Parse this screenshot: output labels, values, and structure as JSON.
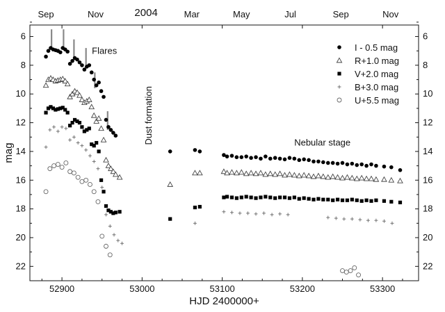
{
  "chart_data": {
    "type": "scatter",
    "title": "2004",
    "xlabel": "HJD 2400000+",
    "ylabel": "mag",
    "xlim": [
      52860,
      53345
    ],
    "ylim": [
      23,
      5.2
    ],
    "y_inverted": true,
    "grid": false,
    "legend_position": "top-right",
    "x_ticks": [
      "52900",
      "53000",
      "53100",
      "53200",
      "53300"
    ],
    "y_ticks": [
      "6",
      "8",
      "10",
      "12",
      "14",
      "16",
      "18",
      "20",
      "22"
    ],
    "top_month_ticks": [
      {
        "label": "Sep",
        "x": 52880
      },
      {
        "label": "Nov",
        "x": 52942
      },
      {
        "label": "Mar",
        "x": 53062
      },
      {
        "label": "May",
        "x": 53124
      },
      {
        "label": "Jul",
        "x": 53185
      },
      {
        "label": "Sep",
        "x": 53248
      },
      {
        "label": "Nov",
        "x": 53310
      }
    ],
    "year_label": {
      "text": "2004",
      "x": 53005
    },
    "annotations": [
      {
        "text": "Flares",
        "x": 52953,
        "y": 7.2
      },
      {
        "text": "Dust formation",
        "x": 53012,
        "y": 11.5,
        "rotation": -90
      },
      {
        "text": "Nebular stage",
        "x": 53225,
        "y": 13.6
      }
    ],
    "flare_markers": [
      {
        "x": 52887,
        "y0": 5.5,
        "y1": 6.8
      },
      {
        "x": 52902,
        "y0": 5.5,
        "y1": 6.8
      },
      {
        "x": 52915,
        "y0": 6.2,
        "y1": 7.5
      },
      {
        "x": 52930,
        "y0": 6.8,
        "y1": 8.2
      },
      {
        "x": 52941,
        "y0": 8.5,
        "y1": 9.6
      },
      {
        "x": 52957,
        "y0": 11.2,
        "y1": 12.5
      }
    ],
    "series": [
      {
        "name": "I - 0.5 mag",
        "marker": "filled-circle",
        "x": [
          52880,
          52883,
          52886,
          52889,
          52892,
          52895,
          52898,
          52901,
          52904,
          52907,
          52910,
          52913,
          52916,
          52919,
          52922,
          52925,
          52928,
          52931,
          52934,
          52937,
          52940,
          52943,
          52946,
          52949,
          52952,
          52955,
          52958,
          52961,
          52964,
          52967,
          53035,
          53066,
          53072,
          53102,
          53106,
          53112,
          53118,
          53124,
          53130,
          53136,
          53142,
          53148,
          53154,
          53160,
          53166,
          53172,
          53178,
          53184,
          53190,
          53196,
          53202,
          53208,
          53214,
          53220,
          53226,
          53232,
          53238,
          53244,
          53250,
          53256,
          53262,
          53268,
          53274,
          53280,
          53286,
          53292,
          53302,
          53311,
          53322
        ],
        "y": [
          7.4,
          7.0,
          6.8,
          6.9,
          6.95,
          7.0,
          7.1,
          6.8,
          6.9,
          7.05,
          7.9,
          7.7,
          7.5,
          7.6,
          7.8,
          8.0,
          8.3,
          8.1,
          8.0,
          8.5,
          9.0,
          9.4,
          9.2,
          9.8,
          10.2,
          11.8,
          12.3,
          12.5,
          12.7,
          12.9,
          14.0,
          13.9,
          14.0,
          14.25,
          14.35,
          14.3,
          14.4,
          14.4,
          14.35,
          14.45,
          14.4,
          14.5,
          14.35,
          14.5,
          14.45,
          14.5,
          14.55,
          14.45,
          14.5,
          14.6,
          14.55,
          14.6,
          14.7,
          14.7,
          14.75,
          14.8,
          14.8,
          14.85,
          14.8,
          14.9,
          14.85,
          14.95,
          14.9,
          15.0,
          14.9,
          15.0,
          15.05,
          15.1,
          15.3
        ]
      },
      {
        "name": "R+1.0 mag",
        "marker": "open-triangle",
        "x": [
          52880,
          52883,
          52886,
          52889,
          52892,
          52895,
          52898,
          52901,
          52904,
          52907,
          52910,
          52913,
          52916,
          52919,
          52922,
          52925,
          52928,
          52931,
          52934,
          52937,
          52940,
          52943,
          52946,
          52949,
          52952,
          52955,
          52958,
          52961,
          52964,
          52967,
          52972,
          53035,
          53066,
          53072,
          53102,
          53106,
          53112,
          53118,
          53124,
          53130,
          53136,
          53142,
          53148,
          53154,
          53160,
          53166,
          53172,
          53178,
          53184,
          53190,
          53196,
          53202,
          53208,
          53214,
          53220,
          53226,
          53232,
          53238,
          53244,
          53250,
          53256,
          53262,
          53268,
          53274,
          53280,
          53286,
          53292,
          53302,
          53311,
          53322
        ],
        "y": [
          9.4,
          9.0,
          8.9,
          9.0,
          9.1,
          9.05,
          9.0,
          8.95,
          9.1,
          9.3,
          10.2,
          10.0,
          9.8,
          9.9,
          10.1,
          10.4,
          10.6,
          10.5,
          10.4,
          10.9,
          11.5,
          11.9,
          11.7,
          12.4,
          13.2,
          14.6,
          15.0,
          15.2,
          15.4,
          15.6,
          15.8,
          16.3,
          15.5,
          15.5,
          15.4,
          15.5,
          15.45,
          15.5,
          15.45,
          15.55,
          15.5,
          15.55,
          15.5,
          15.6,
          15.55,
          15.6,
          15.55,
          15.65,
          15.6,
          15.65,
          15.7,
          15.65,
          15.7,
          15.75,
          15.7,
          15.75,
          15.8,
          15.75,
          15.8,
          15.85,
          15.8,
          15.85,
          15.9,
          15.85,
          15.9,
          15.9,
          15.95,
          15.95,
          16.0,
          16.05
        ]
      },
      {
        "name": "V+2.0 mag",
        "marker": "filled-square",
        "x": [
          52880,
          52883,
          52886,
          52889,
          52892,
          52895,
          52898,
          52901,
          52904,
          52907,
          52910,
          52913,
          52916,
          52919,
          52922,
          52925,
          52928,
          52931,
          52934,
          52937,
          52940,
          52943,
          52946,
          52949,
          52952,
          52955,
          52958,
          52961,
          52964,
          52967,
          52972,
          53035,
          53066,
          53072,
          53102,
          53106,
          53112,
          53118,
          53124,
          53130,
          53136,
          53142,
          53148,
          53154,
          53160,
          53166,
          53172,
          53178,
          53184,
          53190,
          53196,
          53202,
          53208,
          53214,
          53220,
          53226,
          53232,
          53238,
          53244,
          53250,
          53256,
          53262,
          53268,
          53274,
          53280,
          53286,
          53292,
          53302,
          53311,
          53322
        ],
        "y": [
          11.3,
          11.0,
          10.9,
          11.0,
          11.1,
          11.05,
          11.0,
          10.95,
          11.1,
          11.3,
          12.2,
          12.0,
          11.8,
          11.9,
          12.0,
          12.3,
          12.6,
          12.5,
          12.4,
          13.5,
          13.6,
          13.4,
          14.0,
          16.0,
          16.8,
          17.8,
          18.1,
          18.2,
          18.3,
          18.25,
          18.2,
          18.7,
          17.9,
          17.85,
          17.2,
          17.15,
          17.2,
          17.25,
          17.2,
          17.15,
          17.2,
          17.25,
          17.2,
          17.15,
          17.2,
          17.25,
          17.2,
          17.2,
          17.25,
          17.2,
          17.3,
          17.25,
          17.3,
          17.35,
          17.3,
          17.35,
          17.35,
          17.4,
          17.35,
          17.4,
          17.4,
          17.35,
          17.4,
          17.45,
          17.4,
          17.45,
          17.4,
          17.45,
          17.5,
          17.55
        ]
      },
      {
        "name": "B+3.0 mag",
        "marker": "plus",
        "x": [
          52880,
          52885,
          52890,
          52895,
          52900,
          52905,
          52910,
          52915,
          52920,
          52925,
          52930,
          52935,
          52940,
          52945,
          52950,
          52955,
          52960,
          52965,
          52970,
          52975,
          53066,
          53102,
          53112,
          53122,
          53132,
          53142,
          53152,
          53162,
          53172,
          53182,
          53232,
          53242,
          53252,
          53262,
          53272,
          53282,
          53292,
          53302,
          53312
        ],
        "y": [
          13.7,
          12.5,
          12.3,
          12.6,
          12.3,
          12.4,
          13.2,
          13.0,
          13.4,
          13.6,
          13.9,
          14.3,
          14.7,
          15.2,
          16.5,
          18.4,
          19.2,
          19.8,
          20.2,
          20.4,
          19.0,
          18.2,
          18.25,
          18.3,
          18.3,
          18.35,
          18.3,
          18.4,
          18.35,
          18.4,
          18.6,
          18.65,
          18.7,
          18.7,
          18.75,
          18.8,
          18.8,
          18.85,
          19.0
        ]
      },
      {
        "name": "U+5.5 mag",
        "marker": "open-circle",
        "x": [
          52880,
          52885,
          52890,
          52895,
          52900,
          52905,
          52910,
          52915,
          52920,
          52925,
          52930,
          52935,
          52940,
          52945,
          52950,
          52955,
          52960,
          53250,
          53255,
          53260,
          53265,
          53270
        ],
        "y": [
          16.8,
          15.2,
          15.0,
          14.9,
          15.1,
          14.8,
          15.4,
          15.5,
          15.8,
          16.1,
          16.0,
          16.3,
          16.8,
          17.5,
          19.9,
          20.6,
          21.2,
          22.3,
          22.4,
          22.3,
          22.1,
          22.6
        ]
      }
    ]
  }
}
